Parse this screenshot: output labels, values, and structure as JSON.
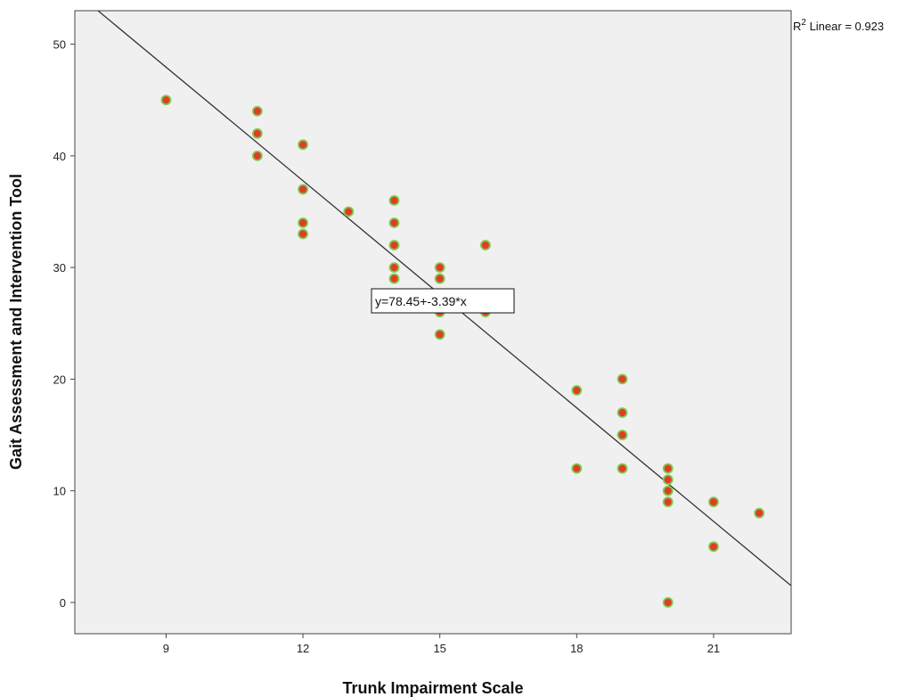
{
  "chart_data": {
    "type": "scatter",
    "xlabel": "Trunk Impairment Scale",
    "ylabel": "Gait Assessment and Intervention Tool",
    "xlim": [
      7,
      22.7
    ],
    "ylim": [
      -2.8,
      53
    ],
    "x_ticks": [
      9,
      12,
      15,
      18,
      21
    ],
    "y_ticks": [
      0,
      10,
      20,
      30,
      40,
      50
    ],
    "grid": false,
    "fit": {
      "type": "linear",
      "intercept": 78.45,
      "slope": -3.39,
      "equation_label": "y=78.45+-3.39*x",
      "r2_prefix": "R",
      "r2_sup": "2",
      "r2_suffix": " Linear = 0.923"
    },
    "points": [
      {
        "x": 9,
        "y": 45
      },
      {
        "x": 11,
        "y": 44
      },
      {
        "x": 11,
        "y": 42
      },
      {
        "x": 11,
        "y": 40
      },
      {
        "x": 12,
        "y": 41
      },
      {
        "x": 12,
        "y": 37
      },
      {
        "x": 12,
        "y": 34
      },
      {
        "x": 12,
        "y": 33
      },
      {
        "x": 13,
        "y": 35
      },
      {
        "x": 14,
        "y": 36
      },
      {
        "x": 14,
        "y": 34
      },
      {
        "x": 14,
        "y": 32
      },
      {
        "x": 14,
        "y": 30
      },
      {
        "x": 14,
        "y": 29
      },
      {
        "x": 15,
        "y": 30
      },
      {
        "x": 15,
        "y": 29
      },
      {
        "x": 15,
        "y": 26
      },
      {
        "x": 15,
        "y": 24
      },
      {
        "x": 16,
        "y": 32
      },
      {
        "x": 16,
        "y": 26
      },
      {
        "x": 18,
        "y": 19
      },
      {
        "x": 18,
        "y": 12
      },
      {
        "x": 19,
        "y": 20
      },
      {
        "x": 19,
        "y": 17
      },
      {
        "x": 19,
        "y": 15
      },
      {
        "x": 19,
        "y": 12
      },
      {
        "x": 20,
        "y": 12
      },
      {
        "x": 20,
        "y": 11
      },
      {
        "x": 20,
        "y": 10
      },
      {
        "x": 20,
        "y": 9
      },
      {
        "x": 20,
        "y": 0
      },
      {
        "x": 21,
        "y": 9
      },
      {
        "x": 21,
        "y": 5
      },
      {
        "x": 22,
        "y": 8
      }
    ],
    "colors": {
      "plot_background": "#f0f0f0",
      "marker_fill": "#e03c2c",
      "marker_edge": "#7ecb4a",
      "fit_line": "#333333"
    }
  }
}
